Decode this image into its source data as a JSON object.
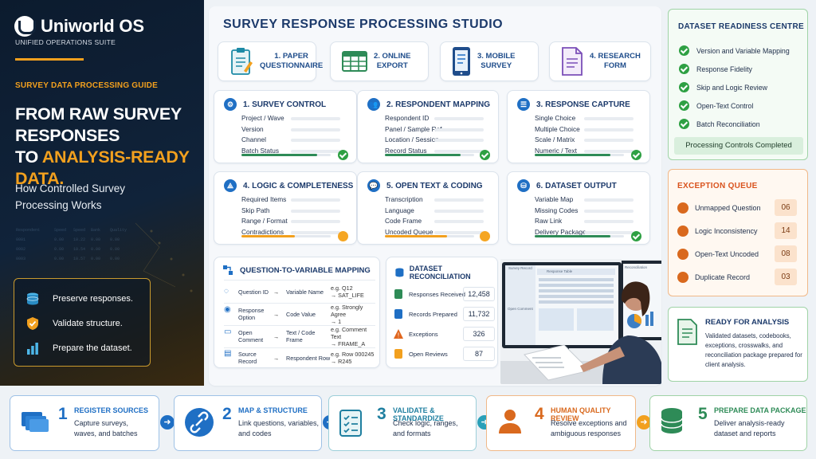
{
  "brand": {
    "name": "Uniworld OS",
    "tagline": "UNIFIED OPERATIONS SUITE"
  },
  "guide": {
    "label": "SURVEY DATA PROCESSING GUIDE",
    "headline_l1": "FROM RAW SURVEY",
    "headline_l2": "RESPONSES",
    "headline_l3a": "TO ",
    "headline_l3b": "ANALYSIS-READY DATA.",
    "sub_l1": "How Controlled Survey",
    "sub_l2": "Processing Works",
    "key_points": [
      "Preserve responses.",
      "Validate structure.",
      "Prepare the dataset."
    ]
  },
  "studio": {
    "title": "SURVEY RESPONSE PROCESSING STUDIO",
    "sources": [
      {
        "label_l1": "1. PAPER",
        "label_l2": "QUESTIONNAIRE",
        "icon": "clipboard-icon"
      },
      {
        "label_l1": "2. ONLINE",
        "label_l2": "EXPORT",
        "icon": "spreadsheet-icon"
      },
      {
        "label_l1": "3. MOBILE",
        "label_l2": "SURVEY",
        "icon": "mobile-icon"
      },
      {
        "label_l1": "4. RESEARCH",
        "label_l2": "FORM",
        "icon": "form-icon"
      }
    ],
    "modules": [
      {
        "title": "1. SURVEY CONTROL",
        "rows": [
          "Project / Wave",
          "Version",
          "Channel",
          "Batch Status"
        ],
        "progress": 0.85,
        "status": "complete"
      },
      {
        "title": "2. RESPONDENT MAPPING",
        "rows": [
          "Respondent ID",
          "Panel / Sample Ref",
          "Location / Session",
          "Record Status"
        ],
        "progress": 0.85,
        "status": "complete"
      },
      {
        "title": "3. RESPONSE CAPTURE",
        "rows": [
          "Single Choice",
          "Multiple Choice",
          "Scale / Matrix",
          "Numeric / Text"
        ],
        "progress": 0.85,
        "status": "complete"
      },
      {
        "title": "4. LOGIC & COMPLETENESS",
        "rows": [
          "Required Items",
          "Skip Path",
          "Range / Format",
          "Contradictions"
        ],
        "progress": 0.6,
        "status": "pending"
      },
      {
        "title": "5. OPEN TEXT & CODING",
        "rows": [
          "Transcription",
          "Language",
          "Code Frame",
          "Uncoded Queue"
        ],
        "progress": 0.7,
        "status": "pending"
      },
      {
        "title": "6. DATASET OUTPUT",
        "rows": [
          "Variable Map",
          "Missing Codes",
          "Raw Link",
          "Delivery Package"
        ],
        "progress": 0.85,
        "status": "complete"
      }
    ]
  },
  "mapping": {
    "title": "QUESTION-TO-VARIABLE MAPPING",
    "rows": [
      {
        "from": "Question ID",
        "to": "Variable Name",
        "example_l1": "e.g. Q12",
        "example_l2": "→ SAT_LIFE"
      },
      {
        "from": "Response Option",
        "to": "Code Value",
        "example_l1": "e.g. Strongly Agree",
        "example_l2": "→ 1"
      },
      {
        "from": "Open Comment",
        "to": "Text / Code Frame",
        "example_l1": "e.g. Comment Text",
        "example_l2": "→ FRAME_A"
      },
      {
        "from": "Source Record",
        "to": "Respondent Row",
        "example_l1": "e.g. Row 000245",
        "example_l2": "→ R245"
      }
    ]
  },
  "reconciliation": {
    "title": "DATASET RECONCILIATION",
    "rows": [
      {
        "label": "Responses Received",
        "value": "12,458"
      },
      {
        "label": "Records Prepared",
        "value": "11,732"
      },
      {
        "label": "Exceptions",
        "value": "326"
      },
      {
        "label": "Open Reviews",
        "value": "87"
      }
    ]
  },
  "photo": {
    "screen_left": "Survey Record",
    "screen_mid": "Response Table",
    "screen_right": "Reconciliation",
    "screen_sub": "Open Comment"
  },
  "readiness": {
    "title": "DATASET READINESS CENTRE",
    "items": [
      "Version and Variable Mapping",
      "Response Fidelity",
      "Skip and Logic Review",
      "Open-Text Control",
      "Batch Reconciliation"
    ],
    "footer": "Processing Controls Completed"
  },
  "exceptions": {
    "title": "EXCEPTION QUEUE",
    "items": [
      {
        "label": "Unmapped Question",
        "count": "06"
      },
      {
        "label": "Logic Inconsistency",
        "count": "14"
      },
      {
        "label": "Open-Text Uncoded",
        "count": "08"
      },
      {
        "label": "Duplicate Record",
        "count": "03"
      }
    ]
  },
  "ready": {
    "title": "READY FOR ANALYSIS",
    "desc": "Validated datasets, codebooks, exceptions, crosswalks, and reconciliation package prepared for client analysis."
  },
  "steps": [
    {
      "num": "1",
      "title": "REGISTER SOURCES",
      "d1": "Capture surveys,",
      "d2": "waves, and batches",
      "color": "#1f6fc4"
    },
    {
      "num": "2",
      "title": "MAP & STRUCTURE",
      "d1": "Link questions, variables,",
      "d2": "and codes",
      "color": "#1f6fc4"
    },
    {
      "num": "3",
      "title": "VALIDATE & STANDARDIZE",
      "d1": "Check logic, ranges,",
      "d2": "and formats",
      "color": "#1f7fa0"
    },
    {
      "num": "4",
      "title": "HUMAN QUALITY REVIEW",
      "d1": "Resolve exceptions and",
      "d2": "ambiguous responses",
      "color": "#d9691e"
    },
    {
      "num": "5",
      "title": "PREPARE DATA PACKAGE",
      "d1": "Deliver analysis-ready",
      "d2": "dataset and reports",
      "color": "#2e8b57"
    }
  ]
}
